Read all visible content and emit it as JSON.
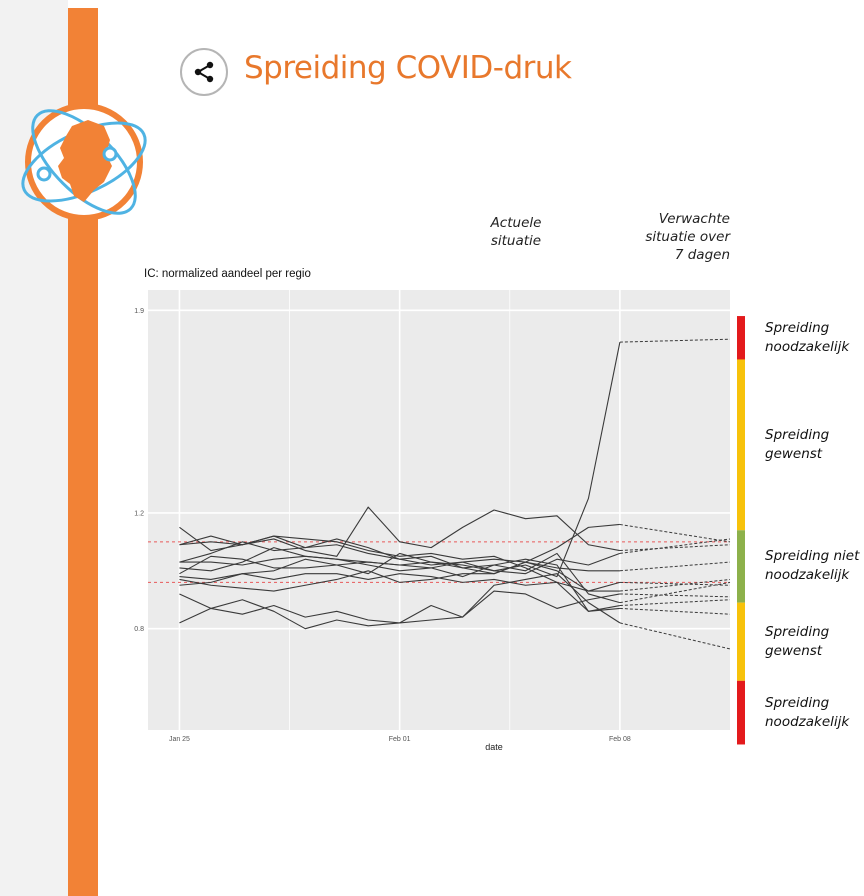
{
  "header": {
    "title": "Spreiding COVID-druk",
    "share_icon": "share-icon",
    "logo_icon": "netherlands-map-orbit-logo"
  },
  "columns": {
    "actual_line1": "Actuele",
    "actual_line2": "situatie",
    "expected_line1": "Verwachte",
    "expected_line2": "situatie over",
    "expected_line3": "7 dagen"
  },
  "zones": [
    {
      "line1": "Spreiding",
      "line2": "noodzakelijk",
      "color": "#e31a1c",
      "from": 1.73,
      "to": 1.88
    },
    {
      "line1": "Spreiding",
      "line2": "gewenst",
      "color": "#f7c20b",
      "from": 1.14,
      "to": 1.73
    },
    {
      "line1": "Spreiding niet",
      "line2": "noodzakelijk",
      "color": "#8db14b",
      "from": 0.89,
      "to": 1.14
    },
    {
      "line1": "Spreiding",
      "line2": "gewenst",
      "color": "#f7c20b",
      "from": 0.62,
      "to": 0.89
    },
    {
      "line1": "Spreiding",
      "line2": "noodzakelijk",
      "color": "#e31a1c",
      "from": 0.4,
      "to": 0.62
    }
  ],
  "colors": {
    "accent": "#e8782c",
    "bar": "#f28236",
    "panel": "#ebebeb",
    "grid": "#ffffff",
    "series": "#3a3a3a",
    "threshold": "#e8595a"
  },
  "chart_data": {
    "type": "line",
    "title": "IC: normalized aandeel per regio",
    "xlabel": "date",
    "ylabel": "",
    "ylim": [
      0.45,
      1.97
    ],
    "yticks": [
      0.8,
      1.2,
      1.9
    ],
    "ytick_labels": [
      "0.8",
      "1.2",
      "1.9"
    ],
    "xticks": [
      0,
      7,
      14
    ],
    "xtick_labels": [
      "Jan 25",
      "Feb 01",
      "Feb 08"
    ],
    "xlim": [
      -1,
      17.5
    ],
    "thresholds": [
      0.96,
      1.1
    ],
    "x_actual": [
      0,
      1,
      2,
      3,
      4,
      5,
      6,
      7,
      8,
      9,
      10,
      11,
      12,
      13,
      14
    ],
    "x_forecast": [
      14,
      17.5
    ],
    "series": [
      {
        "values": [
          0.82,
          0.87,
          0.85,
          0.88,
          0.84,
          0.86,
          0.83,
          0.82,
          0.83,
          0.84,
          0.93,
          0.92,
          0.87,
          0.9,
          0.92
        ],
        "forecast": [
          0.92,
          0.91
        ]
      },
      {
        "values": [
          0.98,
          0.97,
          0.99,
          1.0,
          1.04,
          1.02,
          0.99,
          1.06,
          1.03,
          1.02,
          1.0,
          1.02,
          0.98,
          1.25,
          1.79
        ],
        "forecast": [
          1.79,
          1.8
        ]
      },
      {
        "values": [
          1.15,
          1.07,
          1.09,
          1.11,
          1.07,
          1.05,
          1.22,
          1.1,
          1.08,
          1.15,
          1.21,
          1.18,
          1.19,
          1.09,
          1.07
        ],
        "forecast": [
          1.07,
          1.09
        ]
      },
      {
        "values": [
          0.97,
          0.95,
          0.94,
          0.93,
          0.95,
          0.97,
          1.0,
          0.96,
          0.97,
          0.99,
          0.99,
          1.03,
          1.0,
          0.93,
          0.93
        ],
        "forecast": [
          0.93,
          0.97
        ]
      },
      {
        "values": [
          1.03,
          1.06,
          1.1,
          1.07,
          1.08,
          1.11,
          1.08,
          1.04,
          1.02,
          1.03,
          1.0,
          0.99,
          1.04,
          1.02,
          1.06
        ],
        "forecast": [
          1.06,
          1.11
        ]
      },
      {
        "values": [
          1.09,
          1.1,
          1.09,
          1.12,
          1.08,
          1.09,
          1.06,
          1.04,
          1.05,
          1.01,
          1.02,
          1.04,
          1.02,
          0.86,
          0.87
        ],
        "forecast": [
          0.87,
          0.85
        ]
      },
      {
        "values": [
          0.99,
          1.05,
          1.04,
          1.01,
          1.01,
          1.02,
          1.03,
          1.02,
          1.03,
          1.01,
          0.99,
          1.03,
          1.08,
          1.15,
          1.16
        ],
        "forecast": [
          1.16,
          1.1
        ]
      },
      {
        "values": [
          0.92,
          0.87,
          0.9,
          0.86,
          0.8,
          0.83,
          0.81,
          0.82,
          0.88,
          0.84,
          0.95,
          0.97,
          0.99,
          0.89,
          0.82
        ],
        "forecast": [
          0.82,
          0.73
        ]
      },
      {
        "values": [
          1.03,
          1.03,
          1.02,
          1.04,
          1.05,
          1.04,
          1.03,
          1.02,
          1.01,
          1.03,
          1.04,
          1.03,
          1.01,
          1.0,
          1.0
        ],
        "forecast": [
          1.0,
          1.03
        ]
      },
      {
        "values": [
          0.95,
          0.96,
          0.99,
          0.97,
          0.99,
          0.99,
          0.97,
          0.99,
          0.98,
          0.96,
          0.97,
          0.95,
          0.96,
          0.93,
          0.96
        ],
        "forecast": [
          0.96,
          0.95
        ]
      },
      {
        "values": [
          1.01,
          1.0,
          1.03,
          1.08,
          1.05,
          1.04,
          1.02,
          1.0,
          1.01,
          0.98,
          1.02,
          1.0,
          1.06,
          0.92,
          0.89
        ],
        "forecast": [
          0.89,
          0.96
        ]
      },
      {
        "values": [
          1.09,
          1.12,
          1.09,
          1.12,
          1.11,
          1.1,
          1.07,
          1.05,
          1.06,
          1.04,
          1.05,
          1.01,
          0.96,
          0.86,
          0.88
        ],
        "forecast": [
          0.88,
          0.9
        ]
      }
    ]
  }
}
